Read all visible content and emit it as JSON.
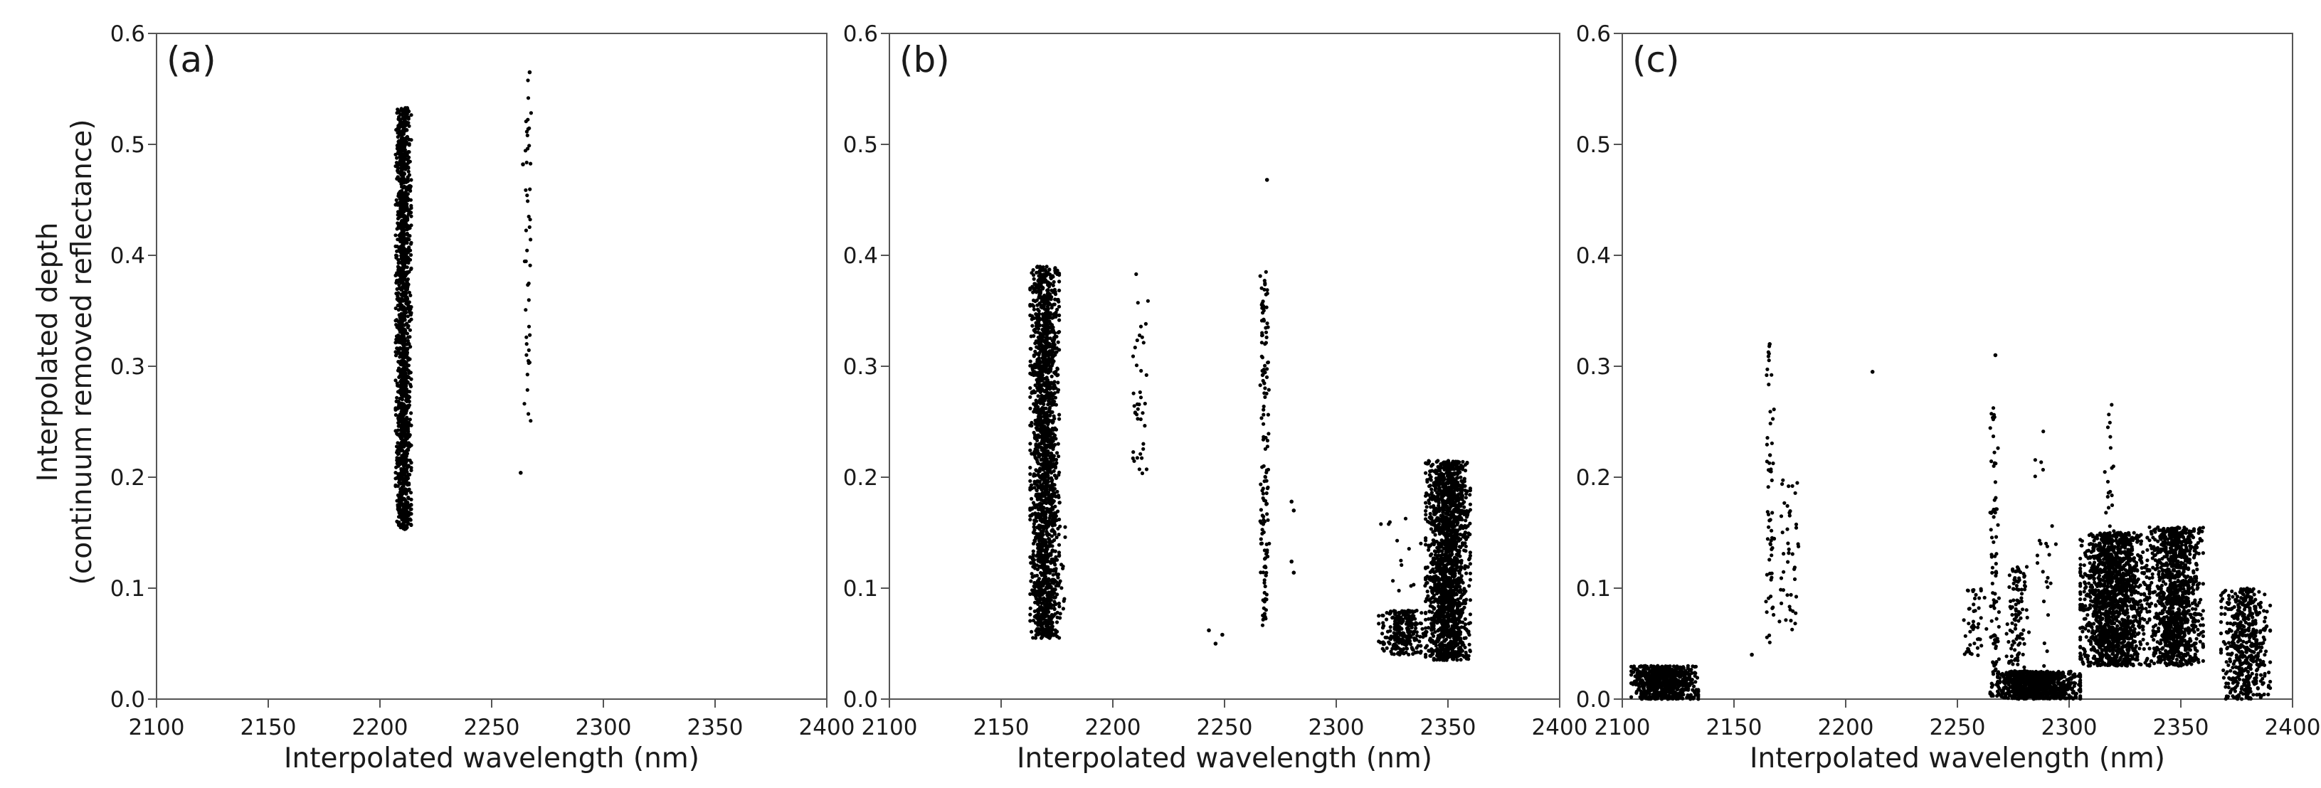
{
  "figure": {
    "ylabel_line1": "Interpolated depth",
    "ylabel_line2": "(continuum removed reflectance)"
  },
  "chart_data": [
    {
      "type": "scatter",
      "panel_label": "(a)",
      "xlabel": "Interpolated wavelength (nm)",
      "ylabel": "Interpolated depth (continuum removed reflectance)",
      "xlim": [
        2100,
        2400
      ],
      "ylim": [
        0.0,
        0.6
      ],
      "x_ticks": [
        "2100",
        "2150",
        "2200",
        "2250",
        "2300",
        "2350",
        "2400"
      ],
      "y_ticks": [
        "0.0",
        "0.1",
        "0.2",
        "0.3",
        "0.4",
        "0.5",
        "0.6"
      ],
      "grid": false,
      "marker_color": "#000000",
      "clusters": [
        {
          "x": [
            2207,
            2214
          ],
          "y": [
            0.153,
            0.533
          ],
          "n": 1500
        },
        {
          "x": [
            2264,
            2268
          ],
          "y": [
            0.25,
            0.565
          ],
          "n": 45
        }
      ],
      "points": [
        {
          "x": 2263,
          "y": 0.204
        },
        {
          "x": 2264,
          "y": 0.482
        },
        {
          "x": 2267,
          "y": 0.565
        }
      ]
    },
    {
      "type": "scatter",
      "panel_label": "(b)",
      "xlabel": "Interpolated wavelength (nm)",
      "xlim": [
        2100,
        2400
      ],
      "ylim": [
        0.0,
        0.6
      ],
      "x_ticks": [
        "2100",
        "2150",
        "2200",
        "2250",
        "2300",
        "2350",
        "2400"
      ],
      "y_ticks": [
        "0.0",
        "0.1",
        "0.2",
        "0.3",
        "0.4",
        "0.5",
        "0.6"
      ],
      "grid": false,
      "marker_color": "#000000",
      "clusters": [
        {
          "x": [
            2163,
            2176
          ],
          "y": [
            0.055,
            0.39
          ],
          "n": 1800
        },
        {
          "x": [
            2171,
            2179
          ],
          "y": [
            0.07,
            0.2
          ],
          "n": 40
        },
        {
          "x": [
            2209,
            2216
          ],
          "y": [
            0.2,
            0.385
          ],
          "n": 40
        },
        {
          "x": [
            2266,
            2270
          ],
          "y": [
            0.065,
            0.385
          ],
          "n": 140
        },
        {
          "x": [
            2319,
            2340
          ],
          "y": [
            0.04,
            0.08
          ],
          "n": 250
        },
        {
          "x": [
            2340,
            2360
          ],
          "y": [
            0.035,
            0.215
          ],
          "n": 1700
        },
        {
          "x": [
            2320,
            2340
          ],
          "y": [
            0.09,
            0.165
          ],
          "n": 14
        }
      ],
      "points": [
        {
          "x": 2243,
          "y": 0.062
        },
        {
          "x": 2246,
          "y": 0.05
        },
        {
          "x": 2249,
          "y": 0.058
        },
        {
          "x": 2269,
          "y": 0.468
        },
        {
          "x": 2280,
          "y": 0.178
        },
        {
          "x": 2281,
          "y": 0.17
        },
        {
          "x": 2280,
          "y": 0.124
        },
        {
          "x": 2281,
          "y": 0.114
        }
      ]
    },
    {
      "type": "scatter",
      "panel_label": "(c)",
      "xlabel": "Interpolated wavelength (nm)",
      "xlim": [
        2100,
        2400
      ],
      "ylim": [
        0.0,
        0.6
      ],
      "x_ticks": [
        "2100",
        "2150",
        "2200",
        "2250",
        "2300",
        "2350",
        "2400"
      ],
      "y_ticks": [
        "0.0",
        "0.1",
        "0.2",
        "0.3",
        "0.4",
        "0.5",
        "0.6"
      ],
      "grid": false,
      "marker_color": "#000000",
      "clusters": [
        {
          "x": [
            2104,
            2134
          ],
          "y": [
            0.0,
            0.03
          ],
          "n": 700
        },
        {
          "x": [
            2164,
            2168
          ],
          "y": [
            0.05,
            0.32
          ],
          "n": 60
        },
        {
          "x": [
            2170,
            2180
          ],
          "y": [
            0.06,
            0.2
          ],
          "n": 45
        },
        {
          "x": [
            2252,
            2263
          ],
          "y": [
            0.03,
            0.1
          ],
          "n": 45
        },
        {
          "x": [
            2264,
            2269
          ],
          "y": [
            0.0,
            0.27
          ],
          "n": 90
        },
        {
          "x": [
            2268,
            2305
          ],
          "y": [
            0.0,
            0.025
          ],
          "n": 800
        },
        {
          "x": [
            2272,
            2282
          ],
          "y": [
            0.0,
            0.12
          ],
          "n": 140
        },
        {
          "x": [
            2283,
            2295
          ],
          "y": [
            0.01,
            0.25
          ],
          "n": 25
        },
        {
          "x": [
            2305,
            2335
          ],
          "y": [
            0.03,
            0.15
          ],
          "n": 1500
        },
        {
          "x": [
            2316,
            2320
          ],
          "y": [
            0.13,
            0.27
          ],
          "n": 20
        },
        {
          "x": [
            2336,
            2360
          ],
          "y": [
            0.03,
            0.155
          ],
          "n": 1100
        },
        {
          "x": [
            2368,
            2390
          ],
          "y": [
            0.0,
            0.1
          ],
          "n": 500
        }
      ],
      "points": [
        {
          "x": 2158,
          "y": 0.04
        },
        {
          "x": 2166,
          "y": 0.32
        },
        {
          "x": 2212,
          "y": 0.295
        },
        {
          "x": 2267,
          "y": 0.31
        }
      ]
    }
  ]
}
